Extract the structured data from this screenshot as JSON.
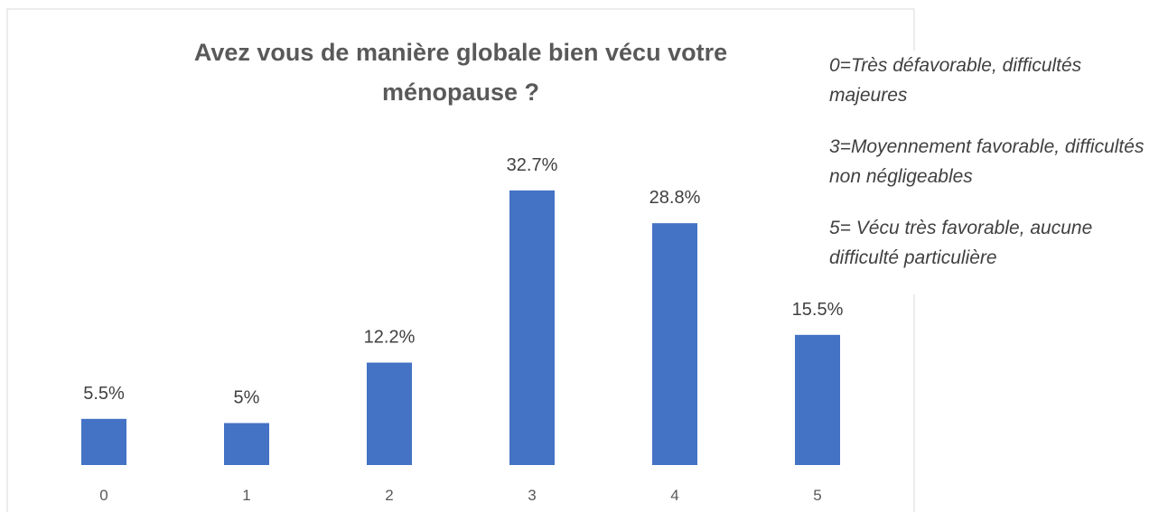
{
  "chart_data": {
    "type": "bar",
    "title": "Avez vous de manière globale bien vécu votre ménopause ?",
    "categories": [
      "0",
      "1",
      "2",
      "3",
      "4",
      "5"
    ],
    "values": [
      5.5,
      5,
      12.2,
      32.7,
      28.8,
      15.5
    ],
    "value_labels": [
      "5.5%",
      "5%",
      "12.2%",
      "32.7%",
      "28.8%",
      "15.5%"
    ],
    "color": "#4472c4",
    "annotations": [
      "0=Très défavorable, difficultés majeures",
      "3=Moyennement favorable, difficultés non négligeables",
      "5= Vécu très favorable, aucune difficulté particulière"
    ]
  }
}
